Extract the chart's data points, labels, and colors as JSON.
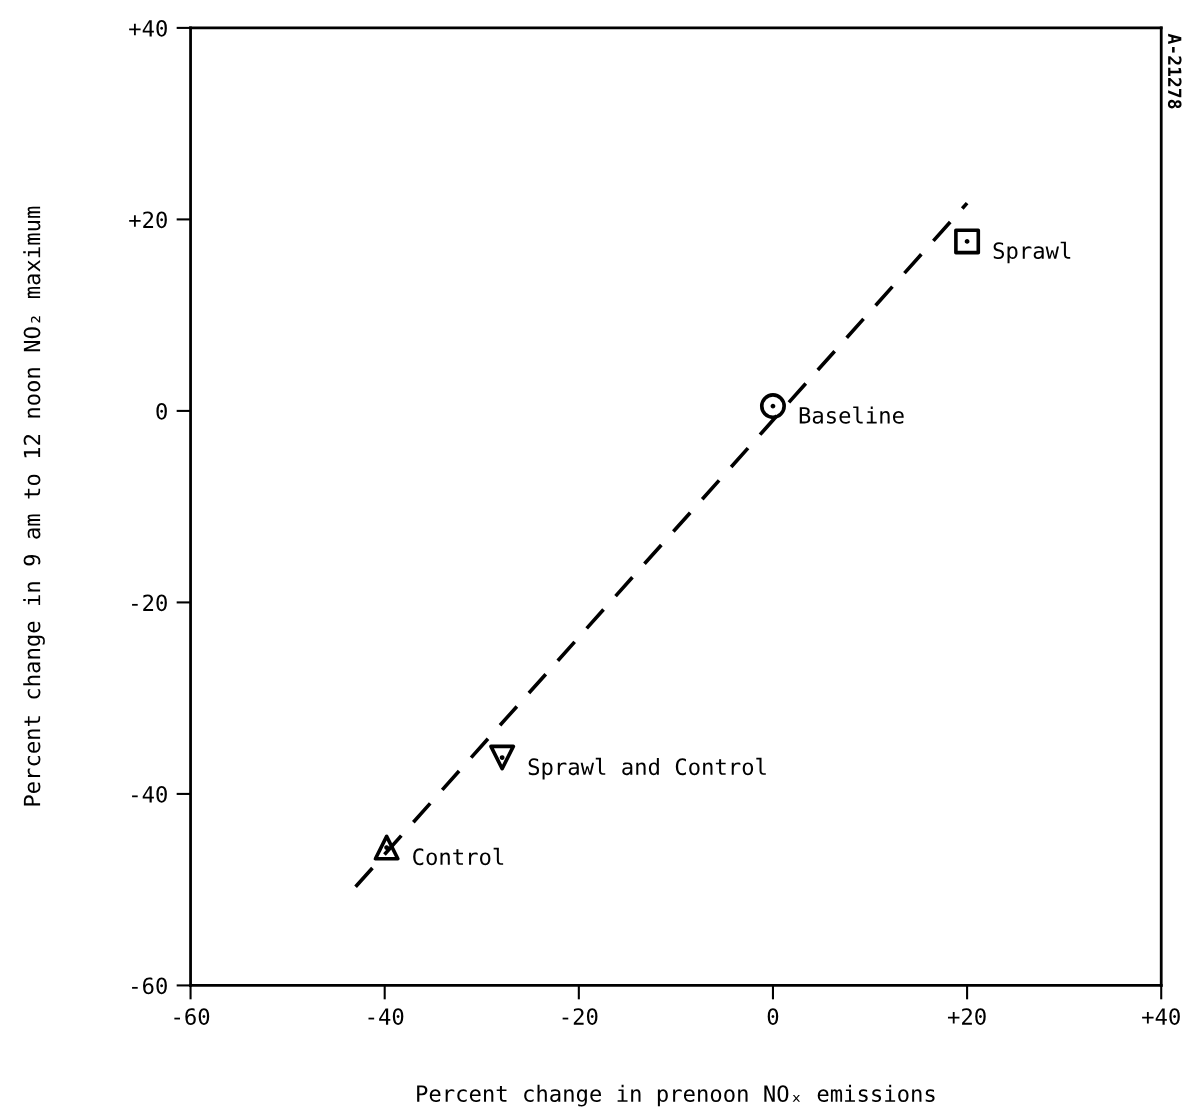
{
  "chart_data": {
    "type": "scatter",
    "xlabel": "Percent change in prenoon NOₓ emissions",
    "ylabel": "Percent change in 9 am to 12 noon NO₂ maximum",
    "annotations": [
      "A-21278"
    ],
    "xlim": [
      -60,
      40
    ],
    "ylim": [
      -60,
      40
    ],
    "xticks": [
      -60,
      -40,
      -20,
      0,
      {
        "value": 20,
        "label": "+20"
      },
      {
        "value": 40,
        "label": "+40"
      }
    ],
    "yticks": [
      -60,
      -40,
      -20,
      0,
      {
        "value": 20,
        "label": "+20"
      },
      {
        "value": 40,
        "label": "+40"
      }
    ],
    "grid": false,
    "legend": false,
    "series": [
      {
        "name": "Sprawl",
        "marker": "square",
        "color": "#000000",
        "x": [
          20
        ],
        "values": [
          17.7
        ]
      },
      {
        "name": "Baseline",
        "marker": "circle",
        "color": "#000000",
        "x": [
          0
        ],
        "values": [
          0.5
        ]
      },
      {
        "name": "Sprawl and Control",
        "marker": "triangle_down",
        "color": "#000000",
        "x": [
          -27.9
        ],
        "values": [
          -36.2
        ]
      },
      {
        "name": "Control",
        "marker": "triangle",
        "color": "#000000",
        "x": [
          -39.8
        ],
        "values": [
          -45.6
        ]
      },
      {
        "type": "line",
        "line_style": "dashed",
        "marker": "none",
        "color": "#000000",
        "x": [
          -43,
          20
        ],
        "values": [
          -49.7,
          21.7
        ]
      }
    ]
  }
}
